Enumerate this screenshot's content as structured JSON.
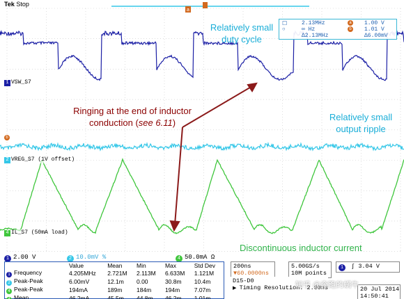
{
  "header": {
    "brand": "Tek",
    "state": "Stop"
  },
  "cursor_readout": {
    "row1": {
      "left_value": "2.13MHz",
      "right_badge": "a",
      "right_value": "1.00 V"
    },
    "row2": {
      "left_value": "∞ Hz",
      "right_badge": "b",
      "right_value": "1.01 V"
    },
    "row3": {
      "left_value": "Δ2.13MHz",
      "right_value": "Δ6.00mV"
    }
  },
  "channels": {
    "ch1": {
      "number": "1",
      "label": "VSW_S7",
      "color": "#1b1fa5"
    },
    "ch2": {
      "number": "2",
      "label": "VREG_S7 (1V offset)",
      "color": "#35c7e8"
    },
    "ch4": {
      "number": "4",
      "label": "IL_S7 (50mA load)",
      "color": "#3fc63c"
    },
    "marker_b": "b"
  },
  "annotations": {
    "duty_cycle": [
      "Relatively small",
      "duty cycle"
    ],
    "ringing": [
      "Ringing at the end of inductor",
      "conduction ("
    ],
    "ringing_ref": "see 6.11",
    "ringing_end": ")",
    "ripple": [
      "Relatively small",
      "output ripple"
    ],
    "discontinuous": "Discontinuous inductor current"
  },
  "scales": {
    "ch1": {
      "number": "1",
      "value": "2.00 V"
    },
    "ch2": {
      "number": "2",
      "value": "10.0mV",
      "suffix": "%"
    },
    "ch4": {
      "number": "4",
      "value": "50.0mA",
      "suffix": "Ω"
    }
  },
  "measurements": {
    "columns": [
      "Value",
      "Mean",
      "Min",
      "Max",
      "Std Dev"
    ],
    "rows": [
      {
        "ch": "1",
        "color": "#1b1fa5",
        "name": "Frequency",
        "values": [
          "4.205MHz",
          "2.721M",
          "2.113M",
          "6.633M",
          "1.121M"
        ]
      },
      {
        "ch": "2",
        "color": "#35c7e8",
        "name": "Peak-Peak",
        "values": [
          "6.00mV",
          "12.1m",
          "0.00",
          "30.8m",
          "10.4m"
        ]
      },
      {
        "ch": "4",
        "color": "#3fc63c",
        "name": "Peak-Peak",
        "values": [
          "194mA",
          "189m",
          "184m",
          "194m",
          "7.07m"
        ]
      },
      {
        "ch": "4",
        "color": "#3fc63c",
        "name": "Mean",
        "values": [
          "46.2mA",
          "45.5m",
          "44.8m",
          "46.2m",
          "1.01m"
        ]
      }
    ]
  },
  "timebase": {
    "scale": "200ns",
    "position": "▼60.0000ns",
    "sample_rate": "5.00GS/s",
    "record_length": "10M points",
    "trigger_ch": "1",
    "trigger_level": "3.04 V",
    "trigger_slope": "∫",
    "digital": "D15-D0",
    "resolution": "Timing Resolution: 2.00ns",
    "date": "20 Jul 2014",
    "time": "14:50:41"
  },
  "watermark": "知乎 @奔跑的蜗牛"
}
